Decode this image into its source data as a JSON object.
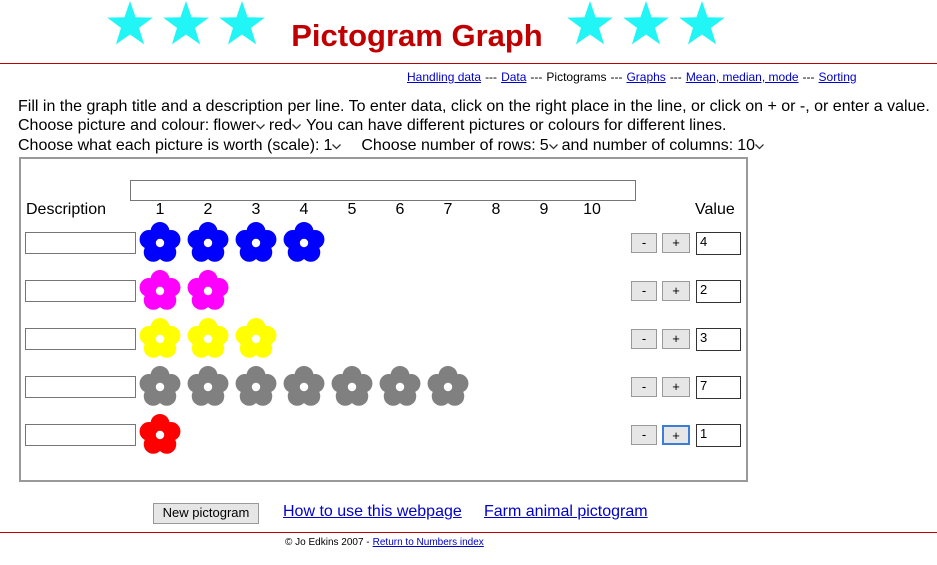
{
  "header": {
    "title": "Pictogram Graph"
  },
  "nav": {
    "separator": "---",
    "items": [
      {
        "text": "Handling data",
        "link": true
      },
      {
        "text": "Data",
        "link": true
      },
      {
        "text": "Pictograms",
        "link": false
      },
      {
        "text": "Graphs",
        "link": true
      },
      {
        "text": "Mean, median, mode",
        "link": true
      },
      {
        "text": "Sorting",
        "link": true
      }
    ]
  },
  "instructions": "Fill in the graph title and a description per line. To enter data, click on the right place in the line, or click on + or -, or enter a value.",
  "picture_line": {
    "label": "Choose picture and colour:",
    "picture": "flower",
    "colour": "red",
    "note": "You can have different pictures or colours for different lines."
  },
  "scale_line": {
    "label": "Choose what each picture is worth (scale):",
    "scale": 1,
    "rows_label": "Choose number of rows:",
    "rows": 5,
    "columns_label": "and number of columns:",
    "columns": 10
  },
  "graph": {
    "description_header": "Description",
    "columns": [
      1,
      2,
      3,
      4,
      5,
      6,
      7,
      8,
      9,
      10
    ],
    "value_header": "Value",
    "minus": "-",
    "plus": "+",
    "rows": [
      {
        "color": "#0000ff",
        "value": 4
      },
      {
        "color": "#ff00ff",
        "value": 2
      },
      {
        "color": "#ffff00",
        "value": 3
      },
      {
        "color": "#808080",
        "value": 7
      },
      {
        "color": "#ff0000",
        "value": 1
      }
    ]
  },
  "footer": {
    "new_button": "New pictogram",
    "links": [
      "How to use this webpage",
      "Farm animal pictogram"
    ],
    "copyright": "© Jo Edkins 2007 -",
    "index_link": "Return to Numbers index"
  }
}
